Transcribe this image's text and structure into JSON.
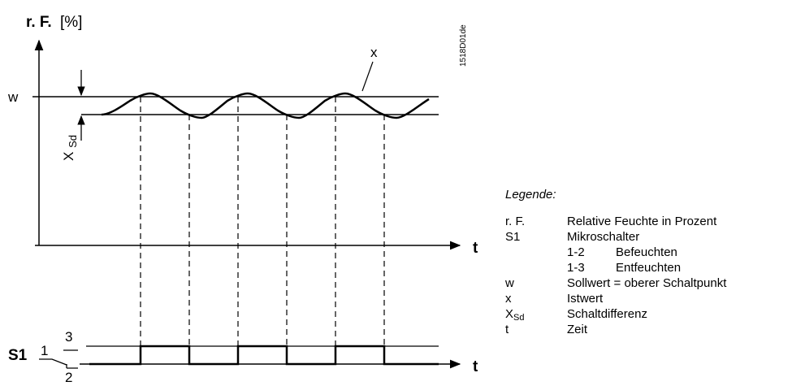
{
  "diagram": {
    "y_axis_label_bold": "r. F.",
    "y_axis_label_unit": "[%]",
    "time_label_top": "t",
    "time_label_bottom": "t",
    "setpoint_label": "w",
    "actual_value_label": "x",
    "differential_label_main": "X",
    "differential_label_sub": "Sd",
    "drawing_code": "1518D01de",
    "switch_label": "S1",
    "switch_terminal_1": "1",
    "switch_terminal_2": "2",
    "switch_terminal_3": "3"
  },
  "legend": {
    "title": "Legende:",
    "rows": [
      {
        "key": "r. F.",
        "value": "Relative Feuchte in Prozent"
      },
      {
        "key": "S1",
        "value": "Mikroschalter"
      },
      {
        "key": "1-2",
        "value": "Befeuchten",
        "sub": true
      },
      {
        "key": "1-3",
        "value": "Entfeuchten",
        "sub": true
      },
      {
        "key": "w",
        "value": "Sollwert = oberer Schaltpunkt"
      },
      {
        "key": "x",
        "value": "Istwert"
      },
      {
        "key_main": "X",
        "key_sub": "Sd",
        "value": "Schaltdifferenz"
      },
      {
        "key": "t",
        "value": "Zeit"
      }
    ]
  }
}
